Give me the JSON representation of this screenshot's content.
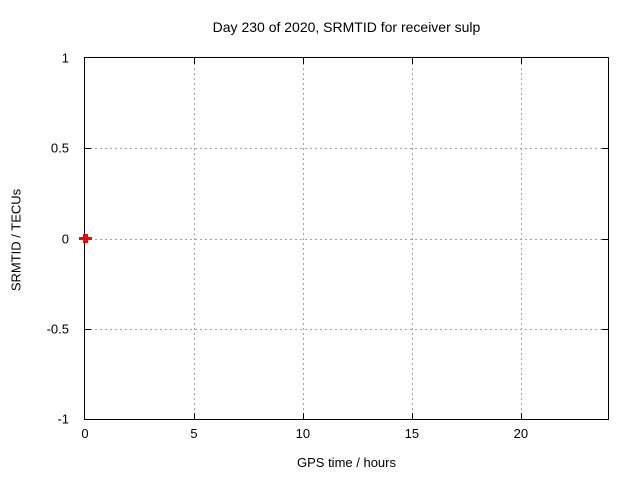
{
  "chart_data": {
    "type": "scatter",
    "title": "Day 230 of 2020, SRMTID for receiver sulp",
    "xlabel": "GPS time / hours",
    "ylabel": "SRMTID / TECUs",
    "xlim": [
      0,
      24
    ],
    "ylim": [
      -1,
      1
    ],
    "xticks": [
      {
        "value": 0,
        "label": "0"
      },
      {
        "value": 5,
        "label": "5"
      },
      {
        "value": 10,
        "label": "10"
      },
      {
        "value": 15,
        "label": "15"
      },
      {
        "value": 20,
        "label": "20"
      }
    ],
    "yticks": [
      {
        "value": -1,
        "label": "-1"
      },
      {
        "value": -0.5,
        "label": "-0.5"
      },
      {
        "value": 0,
        "label": "0"
      },
      {
        "value": 0.5,
        "label": "0.5"
      },
      {
        "value": 1,
        "label": "1"
      }
    ],
    "grid": true,
    "legend": "none",
    "series": [
      {
        "name": "SRMTID",
        "marker": "plus",
        "color": "#ff0000",
        "points": [
          {
            "x": 0.0,
            "y": 0.0
          }
        ]
      }
    ],
    "colors": {
      "background": "#ffffff",
      "axis": "#000000",
      "grid": "#a0a0a0",
      "text": "#000000",
      "marker": "#ff0000"
    }
  }
}
